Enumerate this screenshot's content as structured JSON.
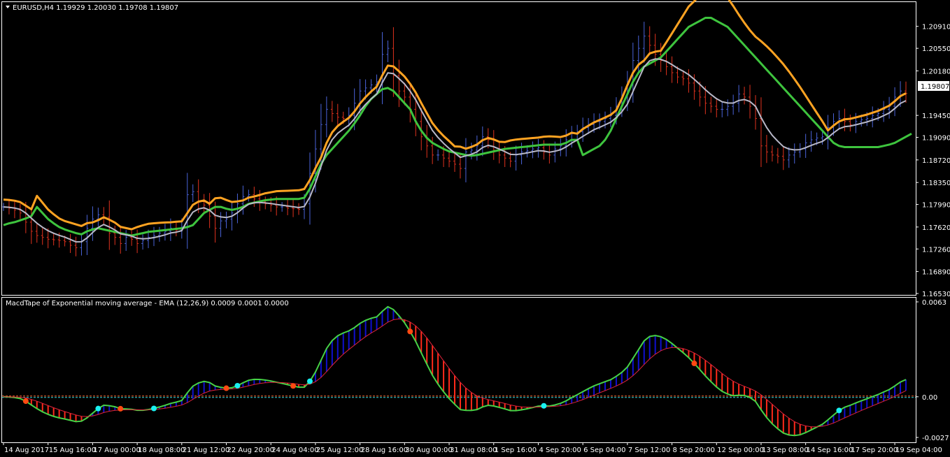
{
  "main_panel": {
    "header_label": "EURUSD,H4  1.19929 1.20030 1.19708 1.19807",
    "symbol_arrow_icon": "triangle-down-icon",
    "current_price_label": "1.19807",
    "current_price": 1.19807
  },
  "macd_panel": {
    "header_label": "MacdTape of Exponential moving average - EMA (12,26,9) 0.0009 0.0001 0.0000"
  },
  "colors": {
    "background": "#000000",
    "bull_candle": "#4a63d8",
    "bear_candle": "#e0321e",
    "green_band": "#3ec43e",
    "orange_band": "#ffa322",
    "mid_line": "#b8b8c8",
    "macd_up": "#1010d0",
    "macd_down": "#ff2a1a",
    "macd_line": "#46d246",
    "signal_line": "#e0233a",
    "dot_cyan": "#19f0f0",
    "dot_orange": "#ff4a12",
    "zero_line_orange": "#ff6a30",
    "zero_line_cyan": "#2bd7e0"
  },
  "chart_data": [
    {
      "type": "line",
      "id": "price",
      "ylim": [
        1.1653,
        1.2109
      ],
      "y_ticks": [
        "1.20910",
        "1.20550",
        "1.20180",
        "1.19450",
        "1.19090",
        "1.18720",
        "1.18350",
        "1.17990",
        "1.17620",
        "1.17260",
        "1.16890",
        "1.16530"
      ],
      "x_tick_labels": [
        "14 Aug 2017",
        "15 Aug 16:00",
        "17 Aug 00:00",
        "18 Aug 08:00",
        "21 Aug 12:00",
        "22 Aug 20:00",
        "24 Aug 04:00",
        "25 Aug 12:00",
        "28 Aug 16:00",
        "30 Aug 00:00",
        "31 Aug 08:00",
        "1 Sep 16:00",
        "4 Sep 20:00",
        "6 Sep 04:00",
        "7 Sep 12:00",
        "8 Sep 20:00",
        "12 Sep 00:00",
        "13 Sep 08:00",
        "14 Sep 16:00",
        "17 Sep 20:00",
        "19 Sep 04:00"
      ],
      "x_positions_index": [
        0,
        8,
        16,
        24,
        32,
        40,
        48,
        56,
        64,
        72,
        80,
        88,
        96,
        104,
        112,
        120,
        128,
        136,
        144,
        152,
        160
      ],
      "series": [
        {
          "key": "close",
          "values": [
            1.1795,
            1.1793,
            1.179,
            1.1785,
            1.177,
            1.1755,
            1.1748,
            1.1745,
            1.1742,
            1.1741,
            1.174,
            1.1738,
            1.1732,
            1.1728,
            1.1738,
            1.176,
            1.1775,
            1.1782,
            1.1778,
            1.1752,
            1.1745,
            1.1735,
            1.1745,
            1.1742,
            1.1735,
            1.174,
            1.1745,
            1.1748,
            1.1752,
            1.1755,
            1.176,
            1.1757,
            1.1762,
            1.1815,
            1.182,
            1.1805,
            1.1798,
            1.178,
            1.176,
            1.1772,
            1.1775,
            1.1785,
            1.18,
            1.1812,
            1.1815,
            1.1808,
            1.1803,
            1.18,
            1.1798,
            1.1795,
            1.1795,
            1.1793,
            1.1792,
            1.1791,
            1.18,
            1.185,
            1.189,
            1.193,
            1.1955,
            1.1948,
            1.1942,
            1.194,
            1.1945,
            1.1965,
            1.1985,
            1.199,
            1.1995,
            1.2,
            1.2045,
            1.2055,
            1.201,
            1.1985,
            1.1975,
            1.1955,
            1.1935,
            1.191,
            1.1895,
            1.188,
            1.188,
            1.1875,
            1.187,
            1.1865,
            1.1858,
            1.1885,
            1.1888,
            1.1895,
            1.191,
            1.1905,
            1.1888,
            1.188,
            1.1875,
            1.187,
            1.188,
            1.1885,
            1.1887,
            1.189,
            1.1892,
            1.1885,
            1.188,
            1.189,
            1.1895,
            1.1905,
            1.1915,
            1.1918,
            1.1925,
            1.193,
            1.1935,
            1.1935,
            1.194,
            1.1945,
            1.196,
            1.1975,
            1.1995,
            1.2035,
            1.2055,
            1.2075,
            1.206,
            1.2045,
            1.2035,
            1.2025,
            1.2015,
            1.2008,
            1.2005,
            1.1998,
            1.1985,
            1.1975,
            1.1965,
            1.196,
            1.1955,
            1.1955,
            1.196,
            1.1965,
            1.198,
            1.1975,
            1.196,
            1.194,
            1.1895,
            1.1885,
            1.188,
            1.1878,
            1.1872,
            1.188,
            1.1885,
            1.189,
            1.19,
            1.1905,
            1.1908,
            1.191,
            1.1925,
            1.1935,
            1.194,
            1.1935,
            1.193,
            1.1935,
            1.1938,
            1.194,
            1.1945,
            1.1948,
            1.1955,
            1.196,
            1.1975,
            1.1985,
            1.1981
          ]
        },
        {
          "key": "green_band",
          "name": "",
          "values": [
            1.1765,
            1.1768,
            1.177,
            1.1773,
            1.1776,
            1.178,
            1.1795,
            1.1785,
            1.1775,
            1.1768,
            1.1762,
            1.1758,
            1.1755,
            1.1752,
            1.175,
            1.1755,
            1.1758,
            1.176,
            1.1758,
            1.1756,
            1.1754,
            1.1752,
            1.175,
            1.1748,
            1.175,
            1.1752,
            1.1754,
            1.1755,
            1.1756,
            1.1757,
            1.1758,
            1.1759,
            1.176,
            1.1762,
            1.1765,
            1.1775,
            1.1785,
            1.179,
            1.1795,
            1.1795,
            1.1792,
            1.179,
            1.1792,
            1.1795,
            1.18,
            1.1802,
            1.1804,
            1.1806,
            1.1807,
            1.1808,
            1.1808,
            1.1808,
            1.1808,
            1.1808,
            1.181,
            1.1825,
            1.1845,
            1.1865,
            1.188,
            1.189,
            1.19,
            1.191,
            1.192,
            1.1932,
            1.1945,
            1.196,
            1.1972,
            1.198,
            1.1988,
            1.199,
            1.1985,
            1.1975,
            1.1965,
            1.1955,
            1.1935,
            1.192,
            1.1908,
            1.19,
            1.1895,
            1.189,
            1.1886,
            1.1884,
            1.1882,
            1.188,
            1.1879,
            1.188,
            1.1882,
            1.1884,
            1.1886,
            1.1888,
            1.189,
            1.1891,
            1.1892,
            1.1893,
            1.1894,
            1.1895,
            1.1896,
            1.1897,
            1.1897,
            1.1897,
            1.1897,
            1.19,
            1.1905,
            1.1905,
            1.188,
            1.1885,
            1.189,
            1.1895,
            1.1905,
            1.192,
            1.194,
            1.196,
            1.198,
            1.2,
            1.2015,
            1.2025,
            1.203,
            1.2035,
            1.204,
            1.205,
            1.206,
            1.207,
            1.208,
            1.209,
            1.2095,
            1.21,
            1.2105,
            1.2105,
            1.21,
            1.2095,
            1.209,
            1.208,
            1.207,
            1.206,
            1.205,
            1.204,
            1.203,
            1.202,
            1.201,
            1.2,
            1.199,
            1.198,
            1.197,
            1.196,
            1.195,
            1.194,
            1.193,
            1.192,
            1.191,
            1.19,
            1.1895,
            1.1893,
            1.1893,
            1.1893,
            1.1893,
            1.1893,
            1.1893,
            1.1893,
            1.1895,
            1.1897,
            1.19,
            1.1905,
            1.191,
            1.1915
          ]
        }
      ]
    },
    {
      "type": "area",
      "id": "macd",
      "ylim": [
        -0.0027,
        0.0063
      ],
      "y_ticks": [
        "0.0063",
        "0.00",
        "-0.0027"
      ],
      "zero_value": 0.0,
      "dots_cyan_index": [
        17,
        27,
        42,
        55,
        97,
        150
      ],
      "dots_orange_index": [
        4,
        21,
        40,
        52,
        73,
        124
      ]
    }
  ]
}
